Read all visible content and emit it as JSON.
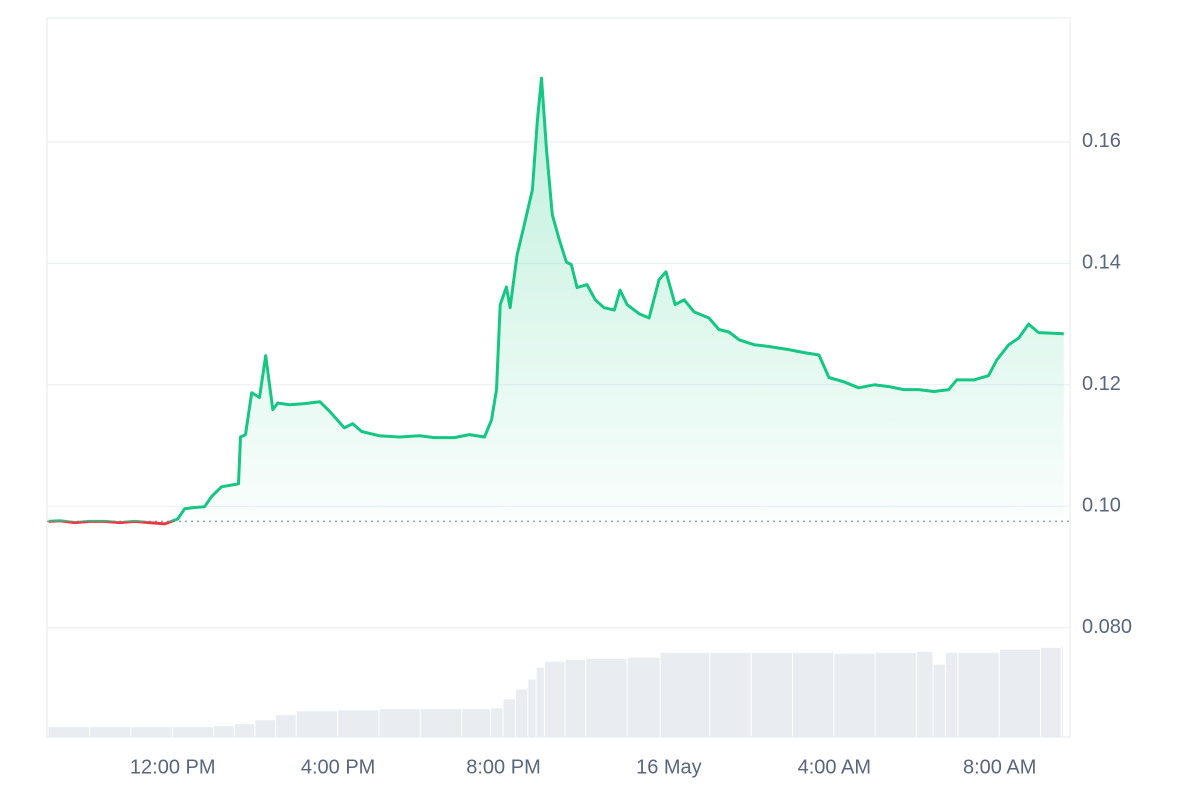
{
  "chart_data": {
    "type": "line",
    "x": [
      9.0,
      9.27,
      9.63,
      9.99,
      10.36,
      10.72,
      11.08,
      11.44,
      11.81,
      12.12,
      12.29,
      12.53,
      12.77,
      12.94,
      13.18,
      13.43,
      13.59,
      13.64,
      13.76,
      13.91,
      14.1,
      14.25,
      14.42,
      14.54,
      14.83,
      15.19,
      15.56,
      15.8,
      16.15,
      16.35,
      16.57,
      17.0,
      17.48,
      17.97,
      18.33,
      18.81,
      19.17,
      19.54,
      19.71,
      19.83,
      19.92,
      20.07,
      20.16,
      20.33,
      20.5,
      20.7,
      20.82,
      20.92,
      21.04,
      21.18,
      21.35,
      21.52,
      21.64,
      21.78,
      22.02,
      22.22,
      22.43,
      22.68,
      22.82,
      22.99,
      23.28,
      23.52,
      23.76,
      23.93,
      24.15,
      24.37,
      24.61,
      24.97,
      25.21,
      25.45,
      25.7,
      26.06,
      26.42,
      26.9,
      27.27,
      27.63,
      27.87,
      28.23,
      28.59,
      28.96,
      29.32,
      29.68,
      30.04,
      30.41,
      30.77,
      30.96,
      31.37,
      31.73,
      31.93,
      32.22,
      32.46,
      32.7,
      32.94,
      33.55
    ],
    "values": [
      0.0975,
      0.0976,
      0.0973,
      0.0975,
      0.0975,
      0.0973,
      0.0975,
      0.0973,
      0.0971,
      0.0979,
      0.0996,
      0.0998,
      0.0999,
      0.1016,
      0.1032,
      0.1035,
      0.1037,
      0.1114,
      0.1118,
      0.1187,
      0.1179,
      0.1248,
      0.1159,
      0.117,
      0.1167,
      0.1169,
      0.1172,
      0.1156,
      0.1129,
      0.1136,
      0.1123,
      0.1116,
      0.1114,
      0.1116,
      0.1113,
      0.1113,
      0.1118,
      0.1114,
      0.1142,
      0.1192,
      0.1332,
      0.1361,
      0.1327,
      0.1414,
      0.1463,
      0.1521,
      0.1636,
      0.1705,
      0.1587,
      0.148,
      0.1439,
      0.1402,
      0.1398,
      0.136,
      0.1365,
      0.134,
      0.1327,
      0.1323,
      0.1356,
      0.1332,
      0.1317,
      0.131,
      0.1373,
      0.1386,
      0.1332,
      0.134,
      0.132,
      0.131,
      0.1291,
      0.1287,
      0.1274,
      0.1266,
      0.1263,
      0.1258,
      0.1253,
      0.1249,
      0.1212,
      0.1205,
      0.1195,
      0.12,
      0.1197,
      0.1192,
      0.1192,
      0.1189,
      0.1192,
      0.1208,
      0.1208,
      0.1215,
      0.1241,
      0.1266,
      0.1277,
      0.13,
      0.1286,
      0.1284
    ],
    "baseline": 0.0975,
    "up_color": "#16c784",
    "down_color": "#ea3943",
    "volume": {
      "color": "#e9edf2",
      "x": [
        9.0,
        10,
        11,
        12,
        13,
        13.5,
        14,
        14.5,
        15,
        16,
        17,
        18,
        19,
        19.7,
        20,
        20.3,
        20.6,
        20.8,
        21,
        21.5,
        22,
        23,
        23.8,
        25,
        26,
        27,
        28,
        29,
        30,
        30.4,
        30.7,
        31,
        32,
        33,
        33.5
      ],
      "values": [
        10,
        10,
        10,
        10,
        11,
        13,
        17,
        22,
        26,
        27,
        28,
        28,
        28,
        29,
        38,
        48,
        58,
        70,
        76,
        78,
        79,
        80,
        85,
        85,
        85,
        85,
        84,
        85,
        86,
        73,
        85,
        85,
        88,
        90,
        92
      ]
    },
    "xlim": [
      8.96,
      33.7
    ],
    "xticks": [
      {
        "value": 12,
        "label": "12:00 PM"
      },
      {
        "value": 16,
        "label": "4:00 PM"
      },
      {
        "value": 20,
        "label": "8:00 PM"
      },
      {
        "value": 24,
        "label": "16 May"
      },
      {
        "value": 28,
        "label": "4:00 AM"
      },
      {
        "value": 32,
        "label": "8:00 AM"
      }
    ],
    "ylim": [
      0.062,
      0.1804
    ],
    "yticks": [
      0.16,
      0.14,
      0.12,
      {
        "value": 0.1,
        "label": "0.10"
      },
      {
        "value": 0.08,
        "label": "0.080"
      }
    ],
    "y2lim": [
      0,
      110
    ],
    "grid": true
  }
}
